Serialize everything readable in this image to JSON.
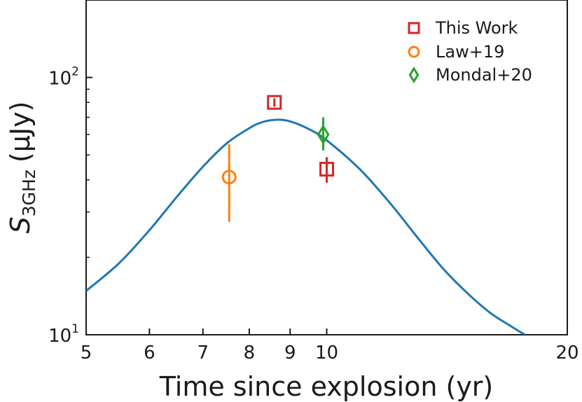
{
  "chart_data": {
    "type": "scatter",
    "xscale": "log",
    "yscale": "log",
    "xlim": [
      5,
      20
    ],
    "ylim": [
      10,
      200
    ],
    "grid": false,
    "legend_position": "top-right",
    "xlabel": "Time since explosion (yr)",
    "ylabel": {
      "main": "S",
      "subscript": "3GHz",
      "unit": "(μJy)"
    },
    "x_ticks": [
      {
        "value": 5,
        "label": "5"
      },
      {
        "value": 6,
        "label": "6"
      },
      {
        "value": 7,
        "label": "7"
      },
      {
        "value": 8,
        "label": "8"
      },
      {
        "value": 9,
        "label": "9"
      },
      {
        "value": 10,
        "label": "10"
      },
      {
        "value": 20,
        "label": "20"
      }
    ],
    "y_ticks": [
      {
        "value": 10,
        "base": "10",
        "exp": "1"
      },
      {
        "value": 100,
        "base": "10",
        "exp": "2"
      }
    ],
    "series": [
      {
        "name": "This Work",
        "marker": "square",
        "color": "#d62728",
        "points": [
          {
            "x": 8.6,
            "y": 80,
            "yerr_low": 77,
            "yerr_high": 83
          },
          {
            "x": 10.0,
            "y": 44,
            "yerr_low": 39,
            "yerr_high": 49
          }
        ]
      },
      {
        "name": "Law+19",
        "marker": "circle",
        "color": "#ff7f0e",
        "points": [
          {
            "x": 7.55,
            "y": 41,
            "yerr_low": 27.5,
            "yerr_high": 55
          }
        ]
      },
      {
        "name": "Mondal+20",
        "marker": "diamond",
        "color": "#2ca02c",
        "points": [
          {
            "x": 9.9,
            "y": 60,
            "yerr_low": 52,
            "yerr_high": 70
          }
        ]
      }
    ],
    "model_curve": {
      "color": "#1f77b4",
      "x": [
        5.0,
        5.5,
        6.0,
        6.5,
        7.0,
        7.5,
        8.0,
        8.3,
        8.65,
        9.0,
        9.5,
        10.0,
        11.0,
        12.0,
        13.0,
        14.0,
        15.0,
        16.0,
        17.0,
        17.7
      ],
      "y": [
        14.8,
        19.0,
        25.5,
        34.5,
        45.0,
        55.5,
        63.5,
        67.0,
        68.5,
        67.5,
        63.0,
        57.0,
        44.0,
        32.5,
        23.8,
        18.0,
        14.5,
        12.2,
        10.8,
        10.0
      ]
    }
  }
}
